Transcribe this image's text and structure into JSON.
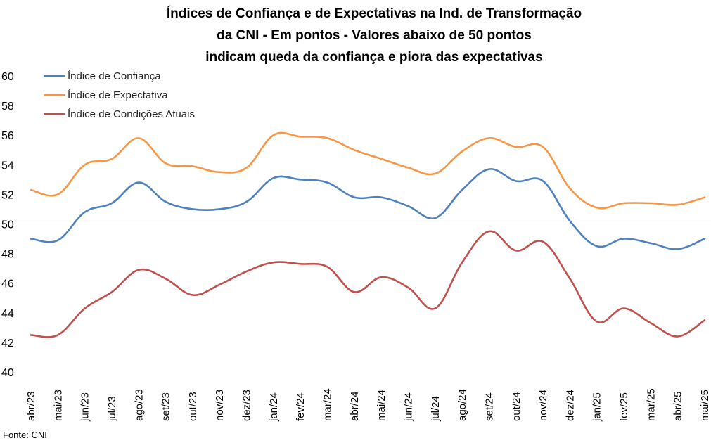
{
  "chart_data": {
    "type": "line",
    "title_lines": [
      "Índices de Confiança e de Expectativas na Ind. de Transformação",
      "da CNI - Em pontos - Valores abaixo de 50 pontos",
      "indicam queda da confiança e piora das expectativas"
    ],
    "categories": [
      "abr/23",
      "mai/23",
      "jun/23",
      "jul/23",
      "ago/23",
      "set/23",
      "out/23",
      "nov/23",
      "dez/23",
      "jan/24",
      "fev/24",
      "mar/24",
      "abr/24",
      "mai/24",
      "jun/24",
      "jul/24",
      "ago/24",
      "set/24",
      "out/24",
      "nov/24",
      "dez/24",
      "jan/25",
      "fev/25",
      "mar/25",
      "abr/25",
      "mai/25"
    ],
    "series": [
      {
        "name": "Índice de Confiança",
        "color": "#4f81bd",
        "values": [
          49.0,
          48.9,
          50.8,
          51.4,
          52.8,
          51.5,
          51.0,
          51.0,
          51.5,
          53.1,
          53.0,
          52.8,
          51.8,
          51.8,
          51.2,
          50.4,
          52.3,
          53.7,
          52.9,
          52.9,
          50.2,
          48.5,
          49.0,
          48.7,
          48.3,
          49.0
        ]
      },
      {
        "name": "Índice de Expectativa",
        "color": "#f79646",
        "values": [
          52.3,
          52.0,
          54.0,
          54.4,
          55.8,
          54.1,
          53.9,
          53.5,
          53.8,
          56.0,
          55.9,
          55.8,
          55.0,
          54.4,
          53.8,
          53.4,
          54.9,
          55.8,
          55.2,
          55.2,
          52.4,
          51.1,
          51.4,
          51.4,
          51.3,
          51.8
        ]
      },
      {
        "name": "Índice de Condições Atuais",
        "color": "#c0504d",
        "values": [
          42.5,
          42.5,
          44.3,
          45.4,
          46.9,
          46.3,
          45.2,
          45.9,
          46.8,
          47.4,
          47.3,
          47.1,
          45.4,
          46.4,
          45.7,
          44.3,
          47.4,
          49.5,
          48.2,
          48.8,
          46.3,
          43.4,
          44.3,
          43.3,
          42.4,
          43.5
        ]
      }
    ],
    "ylim": [
      40,
      60
    ],
    "yticks": [
      40,
      42,
      44,
      46,
      48,
      50,
      52,
      54,
      56,
      58,
      60
    ],
    "reference_line": 50,
    "grid": false,
    "legend_position": "top-left",
    "source_note": "Fonte: CNI"
  }
}
